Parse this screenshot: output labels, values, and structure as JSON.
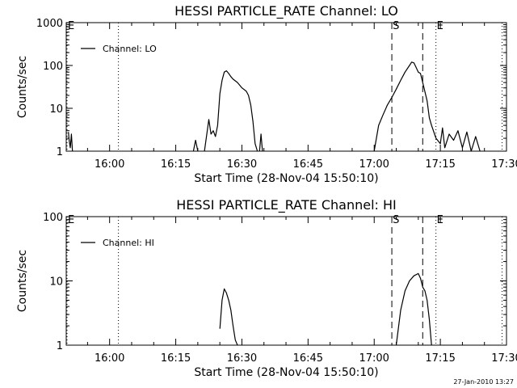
{
  "chart_data": [
    {
      "type": "line",
      "title": "HESSI PARTICLE_RATE Channel: LO",
      "xlabel": "Start Time (28-Nov-04 15:50:10)",
      "ylabel": "Counts/sec",
      "yscale": "log",
      "ylim": [
        1,
        1000
      ],
      "x_tick_labels": [
        "16:00",
        "16:15",
        "16:30",
        "16:45",
        "17:00",
        "17:15",
        "17:30"
      ],
      "y_tick_labels": [
        "1",
        "10",
        "100",
        "1000"
      ],
      "legend": {
        "position": "top-left",
        "entries": [
          "Channel: LO"
        ]
      },
      "markers": [
        {
          "label": "E",
          "x": "15:50",
          "style": "dotted"
        },
        {
          "label": "",
          "x": "16:02",
          "style": "dotted"
        },
        {
          "label": "S",
          "x": "17:04",
          "style": "dashed"
        },
        {
          "label": "",
          "x": "17:11",
          "style": "dashed"
        },
        {
          "label": "E",
          "x": "17:14",
          "style": "dotted"
        },
        {
          "label": "",
          "x": "17:29",
          "style": "dotted"
        }
      ],
      "series": [
        {
          "name": "Channel: LO",
          "segments": [
            [
              [
                "15:50:40",
                2.8
              ],
              [
                "15:50:50",
                1.8
              ],
              [
                "15:51:05",
                1.2
              ],
              [
                "15:51:20",
                2.5
              ],
              [
                "15:51:35",
                1.0
              ]
            ],
            [
              [
                "16:19:00",
                1.0
              ],
              [
                "16:19:30",
                1.8
              ],
              [
                "16:20:00",
                1.0
              ]
            ],
            [
              [
                "16:21:30",
                1.0
              ],
              [
                "16:22:30",
                5.5
              ],
              [
                "16:23:00",
                2.5
              ],
              [
                "16:23:30",
                3.0
              ],
              [
                "16:24:00",
                2.2
              ],
              [
                "16:24:30",
                4.0
              ],
              [
                "16:25:00",
                22
              ],
              [
                "16:25:30",
                45
              ],
              [
                "16:26:00",
                70
              ],
              [
                "16:26:30",
                75
              ],
              [
                "16:27:00",
                65
              ],
              [
                "16:27:30",
                55
              ],
              [
                "16:28:00",
                48
              ],
              [
                "16:29:00",
                40
              ],
              [
                "16:30:00",
                30
              ],
              [
                "16:31:00",
                25
              ],
              [
                "16:31:30",
                20
              ],
              [
                "16:32:00",
                12
              ],
              [
                "16:32:30",
                5
              ],
              [
                "16:33:00",
                1.5
              ],
              [
                "16:33:30",
                1.0
              ]
            ],
            [
              [
                "16:34:00",
                1.0
              ],
              [
                "16:34:20",
                2.5
              ],
              [
                "16:34:40",
                1.0
              ]
            ],
            [
              [
                "17:00:00",
                1.0
              ],
              [
                "17:01:00",
                4
              ],
              [
                "17:02:00",
                7
              ],
              [
                "17:03:00",
                12
              ],
              [
                "17:04:00",
                18
              ],
              [
                "17:05:00",
                28
              ],
              [
                "17:06:00",
                45
              ],
              [
                "17:07:00",
                70
              ],
              [
                "17:08:00",
                100
              ],
              [
                "17:08:30",
                120
              ],
              [
                "17:09:00",
                115
              ],
              [
                "17:09:30",
                90
              ],
              [
                "17:10:00",
                70
              ],
              [
                "17:10:30",
                65
              ],
              [
                "17:11:00",
                40
              ],
              [
                "17:12:00",
                15
              ],
              [
                "17:12:30",
                6
              ],
              [
                "17:13:00",
                4
              ],
              [
                "17:14:00",
                2.0
              ],
              [
                "17:15:00",
                1.5
              ],
              [
                "17:15:30",
                3.5
              ],
              [
                "17:16:00",
                1.2
              ],
              [
                "17:17:00",
                2.5
              ],
              [
                "17:18:00",
                1.8
              ],
              [
                "17:19:00",
                3.0
              ],
              [
                "17:20:00",
                1.2
              ],
              [
                "17:21:00",
                2.8
              ],
              [
                "17:22:00",
                1.0
              ],
              [
                "17:23:00",
                2.2
              ],
              [
                "17:24:00",
                1.0
              ]
            ]
          ]
        }
      ]
    },
    {
      "type": "line",
      "title": "HESSI PARTICLE_RATE Channel: HI",
      "xlabel": "Start Time (28-Nov-04 15:50:10)",
      "ylabel": "Counts/sec",
      "yscale": "log",
      "ylim": [
        1,
        100
      ],
      "x_tick_labels": [
        "16:00",
        "16:15",
        "16:30",
        "16:45",
        "17:00",
        "17:15",
        "17:30"
      ],
      "y_tick_labels": [
        "1",
        "10",
        "100"
      ],
      "legend": {
        "position": "top-left",
        "entries": [
          "Channel: HI"
        ]
      },
      "markers": [
        {
          "label": "E",
          "x": "15:50",
          "style": "dotted"
        },
        {
          "label": "",
          "x": "16:02",
          "style": "dotted"
        },
        {
          "label": "S",
          "x": "17:04",
          "style": "dashed"
        },
        {
          "label": "",
          "x": "17:11",
          "style": "dashed"
        },
        {
          "label": "E",
          "x": "17:14",
          "style": "dotted"
        },
        {
          "label": "",
          "x": "17:29",
          "style": "dotted"
        }
      ],
      "series": [
        {
          "name": "Channel: HI",
          "segments": [
            [
              [
                "16:25:00",
                1.8
              ],
              [
                "16:25:30",
                5
              ],
              [
                "16:26:00",
                7.5
              ],
              [
                "16:26:30",
                6.5
              ],
              [
                "16:27:00",
                5
              ],
              [
                "16:27:30",
                3.5
              ],
              [
                "16:28:00",
                2.0
              ],
              [
                "16:28:30",
                1.2
              ],
              [
                "16:29:00",
                1.0
              ]
            ],
            [
              [
                "17:05:00",
                1.0
              ],
              [
                "17:06:00",
                3.5
              ],
              [
                "17:07:00",
                7
              ],
              [
                "17:08:00",
                10
              ],
              [
                "17:09:00",
                12
              ],
              [
                "17:10:00",
                13
              ],
              [
                "17:10:30",
                11
              ],
              [
                "17:11:00",
                8
              ],
              [
                "17:11:30",
                7
              ],
              [
                "17:12:00",
                5
              ],
              [
                "17:12:30",
                2.5
              ],
              [
                "17:13:00",
                1.0
              ]
            ]
          ]
        }
      ]
    }
  ],
  "timestamp": "27-Jan-2010 13:27"
}
